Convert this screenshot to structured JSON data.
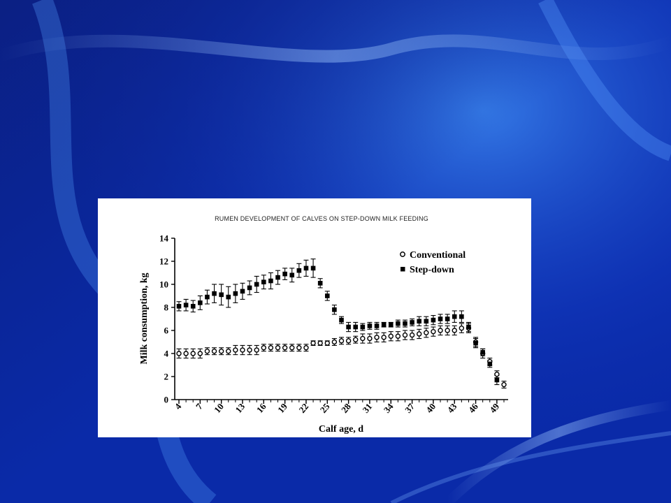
{
  "background": {
    "base_color": "#0a2aa8",
    "highlight_color": "#3a7ee8",
    "streak_color": "#9fc8ff"
  },
  "chart_data": {
    "type": "scatter",
    "title": "RUMEN DEVELOPMENT OF CALVES ON STEP-DOWN MILK FEEDING",
    "xlabel": "Calf age, d",
    "ylabel": "Milk consumption, kg",
    "xlim": [
      4,
      50
    ],
    "ylim": [
      0,
      14
    ],
    "x_ticks": [
      4,
      7,
      10,
      13,
      16,
      19,
      22,
      25,
      28,
      31,
      34,
      37,
      40,
      43,
      46,
      49
    ],
    "y_ticks": [
      0,
      2,
      4,
      6,
      8,
      10,
      12,
      14
    ],
    "legend_position": "top-right",
    "grid": false,
    "error_bars": true,
    "x": [
      4,
      5,
      6,
      7,
      8,
      9,
      10,
      11,
      12,
      13,
      14,
      15,
      16,
      17,
      18,
      19,
      20,
      21,
      22,
      23,
      24,
      25,
      26,
      27,
      28,
      29,
      30,
      31,
      32,
      33,
      34,
      35,
      36,
      37,
      38,
      39,
      40,
      41,
      42,
      43,
      44,
      45,
      46,
      47,
      48,
      49,
      50
    ],
    "series": [
      {
        "name": "Conventional",
        "marker": "open-circle",
        "color": "#000000",
        "values": [
          4.0,
          4.0,
          4.0,
          4.0,
          4.2,
          4.2,
          4.2,
          4.2,
          4.3,
          4.3,
          4.3,
          4.3,
          4.5,
          4.5,
          4.5,
          4.5,
          4.5,
          4.5,
          4.5,
          4.9,
          4.9,
          4.9,
          5.0,
          5.1,
          5.1,
          5.2,
          5.3,
          5.3,
          5.4,
          5.4,
          5.5,
          5.5,
          5.6,
          5.6,
          5.7,
          5.8,
          5.9,
          6.0,
          6.0,
          6.0,
          6.2,
          6.2,
          5.0,
          4.0,
          3.3,
          2.2,
          1.3
        ],
        "errors": [
          0.4,
          0.4,
          0.4,
          0.4,
          0.3,
          0.3,
          0.3,
          0.3,
          0.4,
          0.4,
          0.4,
          0.4,
          0.3,
          0.3,
          0.3,
          0.3,
          0.3,
          0.3,
          0.3,
          0.2,
          0.2,
          0.2,
          0.3,
          0.3,
          0.3,
          0.3,
          0.4,
          0.4,
          0.4,
          0.4,
          0.4,
          0.4,
          0.4,
          0.4,
          0.4,
          0.4,
          0.4,
          0.4,
          0.4,
          0.4,
          0.4,
          0.4,
          0.4,
          0.4,
          0.3,
          0.3,
          0.3
        ]
      },
      {
        "name": "Step-down",
        "marker": "filled-square",
        "color": "#000000",
        "values": [
          8.1,
          8.2,
          8.1,
          8.4,
          8.9,
          9.2,
          9.1,
          8.9,
          9.2,
          9.4,
          9.7,
          10.0,
          10.2,
          10.3,
          10.6,
          10.9,
          10.8,
          11.2,
          11.4,
          11.4,
          10.1,
          9.0,
          7.8,
          6.9,
          6.3,
          6.3,
          6.3,
          6.4,
          6.4,
          6.5,
          6.5,
          6.6,
          6.6,
          6.7,
          6.8,
          6.8,
          6.9,
          7.0,
          7.0,
          7.2,
          7.2,
          6.3,
          4.9,
          4.1,
          3.1,
          1.7
        ],
        "x": [
          4,
          5,
          6,
          7,
          8,
          9,
          10,
          11,
          12,
          13,
          14,
          15,
          16,
          17,
          18,
          19,
          20,
          21,
          22,
          23,
          24,
          25,
          26,
          27,
          28,
          29,
          30,
          31,
          32,
          33,
          34,
          35,
          36,
          37,
          38,
          39,
          40,
          41,
          42,
          43,
          44,
          45,
          46,
          47,
          48,
          49
        ],
        "errors": [
          0.4,
          0.5,
          0.5,
          0.6,
          0.6,
          0.8,
          0.9,
          0.9,
          0.8,
          0.7,
          0.6,
          0.7,
          0.6,
          0.7,
          0.6,
          0.5,
          0.6,
          0.6,
          0.7,
          0.8,
          0.4,
          0.4,
          0.4,
          0.3,
          0.4,
          0.4,
          0.3,
          0.3,
          0.3,
          0.2,
          0.2,
          0.3,
          0.3,
          0.3,
          0.4,
          0.4,
          0.4,
          0.4,
          0.4,
          0.5,
          0.5,
          0.4,
          0.4,
          0.3,
          0.3,
          0.4
        ]
      }
    ]
  }
}
